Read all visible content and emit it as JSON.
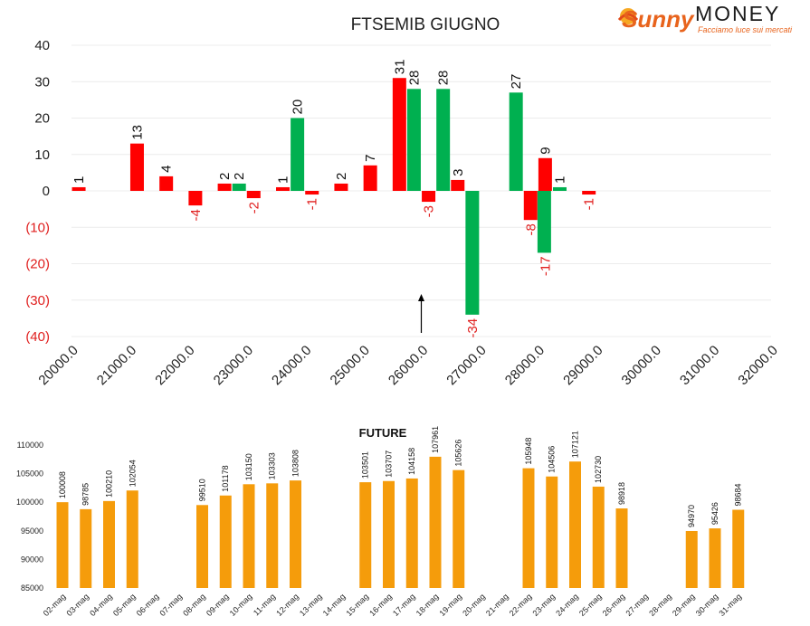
{
  "logo": {
    "brand_script": "Sunny",
    "brand_word": "MONEY",
    "tagline": "Facciamo luce sui mercati"
  },
  "chart_data": [
    {
      "type": "bar",
      "title": "FTSEMIB GIUGNO",
      "xlabel": "",
      "ylabel": "",
      "ylim": [
        -40,
        40
      ],
      "yticks": [
        40,
        30,
        20,
        10,
        0,
        -10,
        -20,
        -30,
        -40
      ],
      "ytick_labels": [
        "40",
        "30",
        "20",
        "10",
        "0",
        "(10)",
        "(20)",
        "(30)",
        "(40)"
      ],
      "xlim": [
        20000,
        32000
      ],
      "xticks": [
        "20000.0",
        "21000.0",
        "22000.0",
        "23000.0",
        "24000.0",
        "25000.0",
        "26000.0",
        "27000.0",
        "28000.0",
        "29000.0",
        "30000.0",
        "31000.0",
        "32000.0"
      ],
      "grid": true,
      "colors": {
        "red": "#ff0000",
        "green": "#00b050",
        "negative_label": "#e0201f",
        "arrow": "#000000"
      },
      "annotation_arrow_at": 26000,
      "bars": [
        {
          "strike": 20125,
          "value": 1,
          "color": "red"
        },
        {
          "strike": 21125,
          "value": 13,
          "color": "red"
        },
        {
          "strike": 21625,
          "value": 4,
          "color": "red"
        },
        {
          "strike": 22125,
          "value": -4,
          "color": "red"
        },
        {
          "strike": 22625,
          "value": 2,
          "color": "red"
        },
        {
          "strike": 22875,
          "value": 2,
          "color": "green"
        },
        {
          "strike": 23125,
          "value": -2,
          "color": "red"
        },
        {
          "strike": 23625,
          "value": 1,
          "color": "red"
        },
        {
          "strike": 23875,
          "value": 20,
          "color": "green"
        },
        {
          "strike": 24125,
          "value": -1,
          "color": "red"
        },
        {
          "strike": 24625,
          "value": 2,
          "color": "red"
        },
        {
          "strike": 25125,
          "value": 7,
          "color": "red"
        },
        {
          "strike": 25625,
          "value": 31,
          "color": "red"
        },
        {
          "strike": 25875,
          "value": 28,
          "color": "green"
        },
        {
          "strike": 26125,
          "value": -3,
          "color": "red"
        },
        {
          "strike": 26375,
          "value": 28,
          "color": "green"
        },
        {
          "strike": 26625,
          "value": 3,
          "color": "red"
        },
        {
          "strike": 26875,
          "value": -34,
          "color": "green"
        },
        {
          "strike": 27625,
          "value": 27,
          "color": "green"
        },
        {
          "strike": 27875,
          "value": -8,
          "color": "red"
        },
        {
          "strike": 28125,
          "value": 9,
          "color": "red"
        },
        {
          "strike": 28125,
          "value": -17,
          "color": "green",
          "offset": -1
        },
        {
          "strike": 28375,
          "value": 1,
          "color": "green"
        },
        {
          "strike": 28875,
          "value": -1,
          "color": "red"
        }
      ]
    },
    {
      "type": "bar",
      "title": "FUTURE",
      "xlabel": "",
      "ylabel": "",
      "ylim": [
        85000,
        110000
      ],
      "yticks": [
        110000,
        105000,
        100000,
        95000,
        90000,
        85000
      ],
      "ytick_labels": [
        "110000",
        "105000",
        "100000",
        "95000",
        "90000",
        "85000"
      ],
      "color": "#f59c0b",
      "categories": [
        "02-mag",
        "03-mag",
        "04-mag",
        "05-mag",
        "06-mag",
        "07-mag",
        "08-mag",
        "09-mag",
        "10-mag",
        "11-mag",
        "12-mag",
        "13-mag",
        "14-mag",
        "15-mag",
        "16-mag",
        "17-mag",
        "18-mag",
        "19-mag",
        "20-mag",
        "21-mag",
        "22-mag",
        "23-mag",
        "24-mag",
        "25-mag",
        "26-mag",
        "27-mag",
        "28-mag",
        "29-mag",
        "30-mag",
        "31-mag"
      ],
      "values": [
        100008,
        98785,
        100210,
        102054,
        null,
        null,
        99510,
        101178,
        103150,
        103303,
        103808,
        null,
        null,
        103501,
        103707,
        104158,
        107961,
        105626,
        null,
        null,
        105948,
        104506,
        107121,
        102730,
        98918,
        null,
        null,
        94970,
        95426,
        98684
      ],
      "data_labels": [
        "100008",
        "98785",
        "100210",
        "102054",
        "",
        "",
        "99510",
        "101178",
        "103150",
        "103303",
        "103808",
        "",
        "",
        "103501",
        "103707",
        "104158",
        "107961",
        "105626",
        "",
        "",
        "105948",
        "104506",
        "107121",
        "102730",
        "98918",
        "",
        "",
        "94970",
        "95426",
        "98684"
      ]
    }
  ]
}
